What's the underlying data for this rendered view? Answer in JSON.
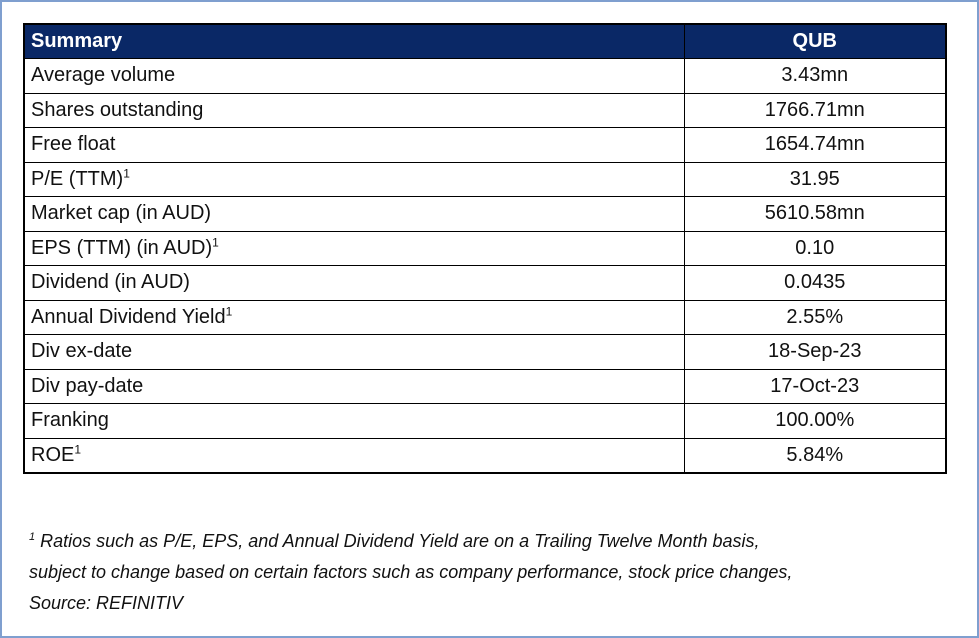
{
  "table": {
    "header": {
      "label": "Summary",
      "value": "QUB"
    },
    "rows": [
      {
        "label": "Average volume",
        "sup": "",
        "value": "3.43mn"
      },
      {
        "label": "Shares outstanding",
        "sup": "",
        "value": "1766.71mn"
      },
      {
        "label": "Free float",
        "sup": "",
        "value": "1654.74mn"
      },
      {
        "label": "P/E (TTM)",
        "sup": "1",
        "value": "31.95"
      },
      {
        "label": "Market cap (in AUD)",
        "sup": "",
        "value": "5610.58mn"
      },
      {
        "label": "EPS (TTM) (in AUD)",
        "sup": "1",
        "value": "0.10"
      },
      {
        "label": "Dividend (in AUD)",
        "sup": "",
        "value": "0.0435"
      },
      {
        "label": "Annual Dividend Yield",
        "sup": "1",
        "value": "2.55%"
      },
      {
        "label": "Div ex-date",
        "sup": "",
        "value": "18-Sep-23"
      },
      {
        "label": "Div pay-date",
        "sup": "",
        "value": "17-Oct-23"
      },
      {
        "label": "Franking",
        "sup": "",
        "value": "100.00%"
      },
      {
        "label": "ROE",
        "sup": "1",
        "value": "5.84%"
      }
    ]
  },
  "footnote": {
    "marker": "1",
    "line1": " Ratios such as P/E, EPS, and Annual Dividend Yield are on a Trailing Twelve Month basis,",
    "line2": "subject to change based on certain factors such as company performance, stock price changes,",
    "line3": "Source: REFINITIV"
  },
  "colors": {
    "header_background": "#0a2866",
    "header_text": "#ffffff",
    "frame_border": "#7f9fcf"
  }
}
